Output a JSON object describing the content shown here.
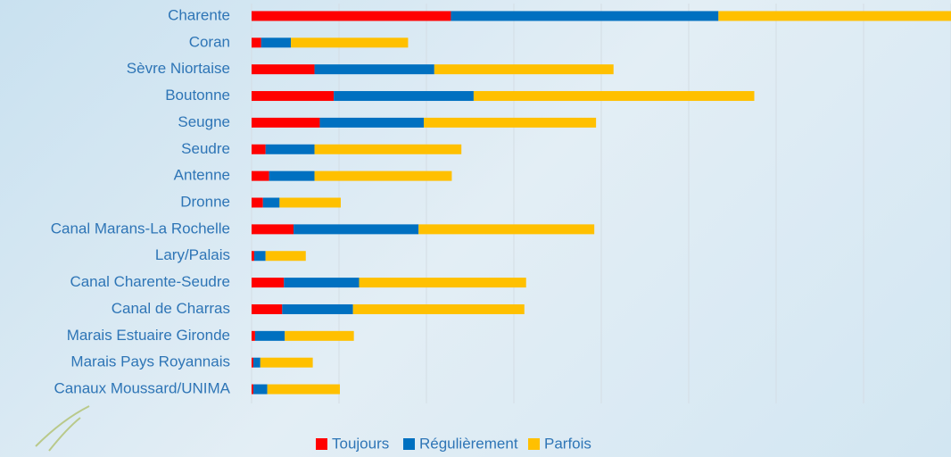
{
  "chart_data": {
    "type": "stacked-barh",
    "categories": [
      "Charente",
      "Coran",
      "Sèvre Niortaise",
      "Boutonne",
      "Seugne",
      "Seudre",
      "Antenne",
      "Dronne",
      "Canal Marans-La Rochelle",
      "Lary/Palais",
      "Canal Charente-Seudre",
      "Canal de Charras",
      "Marais Estuaire Gironde",
      "Marais Pays Royannais",
      "Canaux Moussard/UNIMA"
    ],
    "series": [
      {
        "name": "Toujours",
        "color": "#ff0000",
        "values": [
          22.8,
          1.1,
          7.2,
          9.4,
          7.8,
          1.6,
          2.0,
          1.3,
          4.8,
          0.3,
          3.7,
          3.5,
          0.4,
          0.2,
          0.2
        ]
      },
      {
        "name": "Régulièrement",
        "color": "#0070c0",
        "values": [
          30.6,
          3.4,
          13.7,
          16.0,
          11.9,
          5.6,
          5.2,
          1.9,
          14.3,
          1.3,
          8.6,
          8.1,
          3.4,
          0.8,
          1.6
        ]
      },
      {
        "name": "Parfois",
        "color": "#ffc000",
        "values": [
          26.6,
          13.4,
          20.5,
          32.1,
          19.7,
          16.8,
          15.7,
          7.0,
          20.1,
          4.6,
          19.1,
          19.6,
          7.9,
          6.0,
          8.3
        ]
      }
    ],
    "xlim": [
      0,
      80
    ],
    "xticks": [
      0,
      10,
      20,
      30,
      40,
      50,
      60,
      70,
      80
    ],
    "grid": true,
    "legend": "bottom"
  }
}
